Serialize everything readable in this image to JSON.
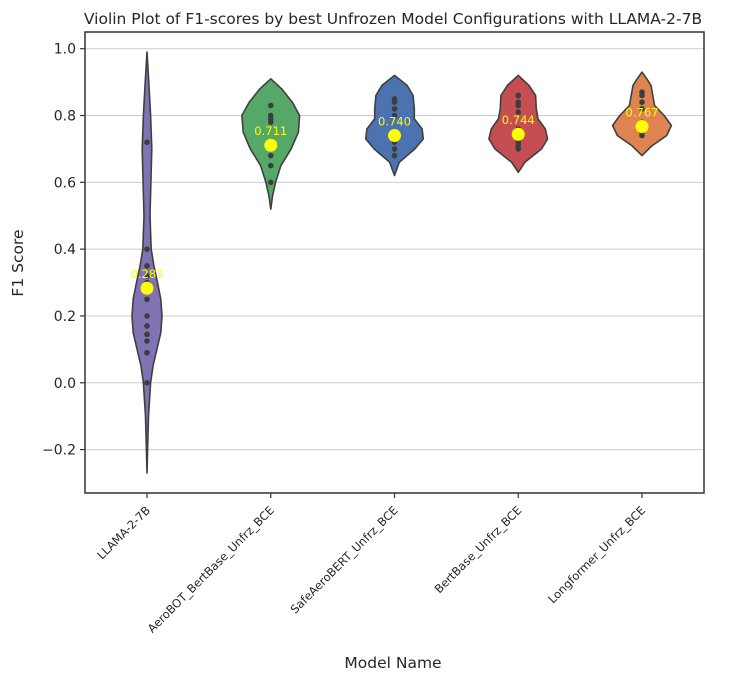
{
  "chart_data": {
    "type": "violin",
    "title": "Violin Plot of F1-scores by best Unfrozen Model Configurations with LLAMA-2-7B",
    "xlabel": "Model Name",
    "ylabel": "F1 Score",
    "ylim": [
      -0.33,
      1.05
    ],
    "yticks": [
      -0.2,
      0.0,
      0.2,
      0.4,
      0.6,
      0.8,
      1.0
    ],
    "ytick_labels": [
      "−0.2",
      "0.0",
      "0.2",
      "0.4",
      "0.6",
      "0.8",
      "1.0"
    ],
    "grid": "horizontal",
    "categories": [
      "LLAMA-2-7B",
      "AeroBOT_BertBase_Unfrz_BCE",
      "SafeAeroBERT_Unfrz_BCE",
      "BertBase_Unfrz_BCE",
      "Longformer_Unfrz_BCE"
    ],
    "colors": [
      "#8172B3",
      "#55A868",
      "#4C72B0",
      "#C44E52",
      "#DD8452"
    ],
    "mean_marker_color": "#FFFF00",
    "series": [
      {
        "category": "LLAMA-2-7B",
        "mean": 0.283,
        "mean_label": "0.283",
        "points": [
          0.72,
          0.4,
          0.35,
          0.32,
          0.3,
          0.25,
          0.2,
          0.17,
          0.145,
          0.125,
          0.09,
          0.0
        ],
        "violin_range": [
          -0.27,
          0.99
        ],
        "density": [
          [
            -0.27,
            0.0
          ],
          [
            -0.2,
            0.02
          ],
          [
            -0.1,
            0.05
          ],
          [
            0.0,
            0.12
          ],
          [
            0.05,
            0.2
          ],
          [
            0.1,
            0.33
          ],
          [
            0.15,
            0.46
          ],
          [
            0.2,
            0.5
          ],
          [
            0.25,
            0.46
          ],
          [
            0.3,
            0.35
          ],
          [
            0.35,
            0.23
          ],
          [
            0.4,
            0.14
          ],
          [
            0.5,
            0.1
          ],
          [
            0.6,
            0.13
          ],
          [
            0.7,
            0.16
          ],
          [
            0.8,
            0.12
          ],
          [
            0.9,
            0.06
          ],
          [
            0.99,
            0.0
          ]
        ]
      },
      {
        "category": "AeroBOT_BertBase_Unfrz_BCE",
        "mean": 0.711,
        "mean_label": "0.711",
        "points": [
          0.83,
          0.8,
          0.79,
          0.78,
          0.72,
          0.7,
          0.68,
          0.65,
          0.6
        ],
        "violin_range": [
          0.52,
          0.91
        ],
        "density": [
          [
            0.52,
            0.0
          ],
          [
            0.56,
            0.06
          ],
          [
            0.6,
            0.16
          ],
          [
            0.65,
            0.34
          ],
          [
            0.7,
            0.68
          ],
          [
            0.75,
            0.92
          ],
          [
            0.8,
            0.96
          ],
          [
            0.84,
            0.72
          ],
          [
            0.88,
            0.36
          ],
          [
            0.91,
            0.0
          ]
        ]
      },
      {
        "category": "SafeAeroBERT_Unfrz_BCE",
        "mean": 0.74,
        "mean_label": "0.740",
        "points": [
          0.85,
          0.84,
          0.82,
          0.8,
          0.74,
          0.72,
          0.7,
          0.68
        ],
        "violin_range": [
          0.62,
          0.92
        ],
        "density": [
          [
            0.62,
            0.0
          ],
          [
            0.66,
            0.16
          ],
          [
            0.7,
            0.68
          ],
          [
            0.73,
            0.96
          ],
          [
            0.76,
            0.92
          ],
          [
            0.79,
            0.66
          ],
          [
            0.82,
            0.66
          ],
          [
            0.86,
            0.62
          ],
          [
            0.89,
            0.42
          ],
          [
            0.92,
            0.0
          ]
        ]
      },
      {
        "category": "BertBase_Unfrz_BCE",
        "mean": 0.744,
        "mean_label": "0.744",
        "points": [
          0.86,
          0.84,
          0.83,
          0.81,
          0.76,
          0.74,
          0.72,
          0.71,
          0.7
        ],
        "violin_range": [
          0.63,
          0.92
        ],
        "density": [
          [
            0.63,
            0.0
          ],
          [
            0.66,
            0.22
          ],
          [
            0.7,
            0.78
          ],
          [
            0.73,
            0.98
          ],
          [
            0.76,
            0.9
          ],
          [
            0.79,
            0.66
          ],
          [
            0.82,
            0.6
          ],
          [
            0.86,
            0.58
          ],
          [
            0.89,
            0.36
          ],
          [
            0.92,
            0.0
          ]
        ]
      },
      {
        "category": "Longformer_Unfrz_BCE",
        "mean": 0.767,
        "mean_label": "0.767",
        "points": [
          0.87,
          0.86,
          0.84,
          0.82,
          0.78,
          0.76,
          0.75,
          0.74
        ],
        "violin_range": [
          0.68,
          0.93
        ],
        "density": [
          [
            0.68,
            0.0
          ],
          [
            0.71,
            0.34
          ],
          [
            0.74,
            0.82
          ],
          [
            0.77,
            0.98
          ],
          [
            0.8,
            0.74
          ],
          [
            0.83,
            0.42
          ],
          [
            0.86,
            0.36
          ],
          [
            0.89,
            0.3
          ],
          [
            0.91,
            0.16
          ],
          [
            0.93,
            0.0
          ]
        ]
      }
    ]
  }
}
